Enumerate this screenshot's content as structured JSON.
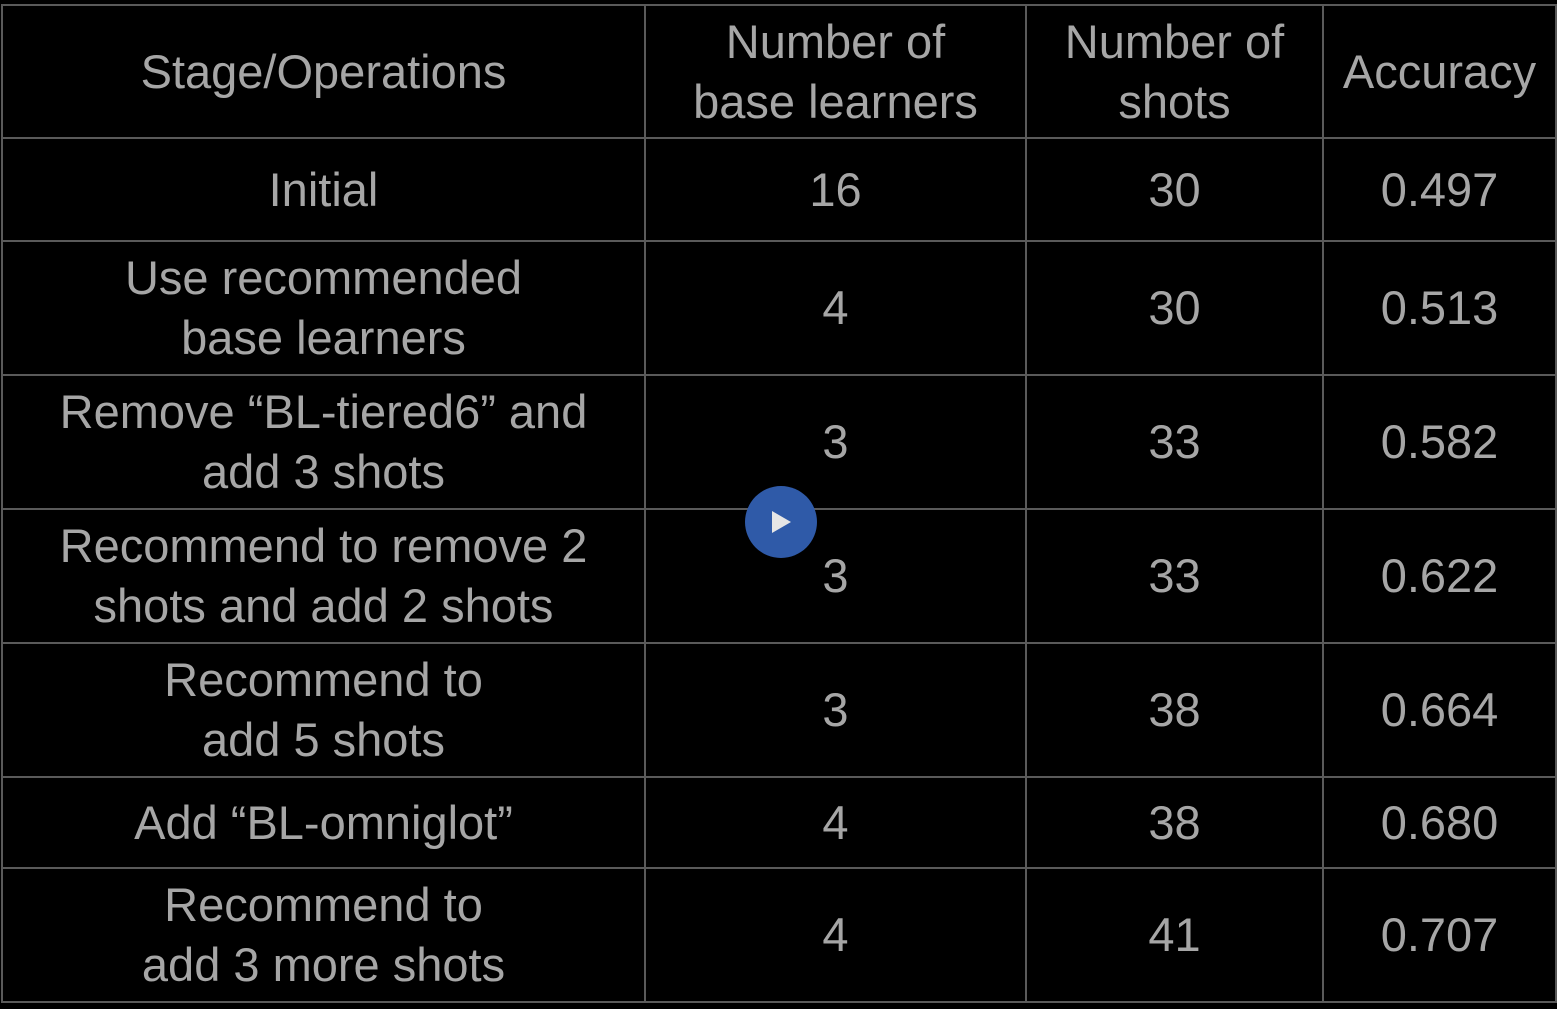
{
  "table": {
    "headers": [
      "Stage/Operations",
      "Number of\nbase learners",
      "Number of\nshots",
      "Accuracy"
    ],
    "rows": [
      [
        "Initial",
        "16",
        "30",
        "0.497"
      ],
      [
        "Use recommended\nbase learners",
        "4",
        "30",
        "0.513"
      ],
      [
        "Remove “BL-tiered6” and\nadd 3 shots",
        "3",
        "33",
        "0.582"
      ],
      [
        "Recommend to remove 2\nshots and add 2 shots",
        "3",
        "33",
        "0.622"
      ],
      [
        "Recommend to\nadd 5 shots",
        "3",
        "38",
        "0.664"
      ],
      [
        "Add “BL-omniglot”",
        "4",
        "38",
        "0.680"
      ],
      [
        "Recommend to\nadd 3 more shots",
        "4",
        "41",
        "0.707"
      ]
    ]
  },
  "player": {
    "play_icon": "play-icon",
    "accent_color": "#2f5aa8"
  }
}
